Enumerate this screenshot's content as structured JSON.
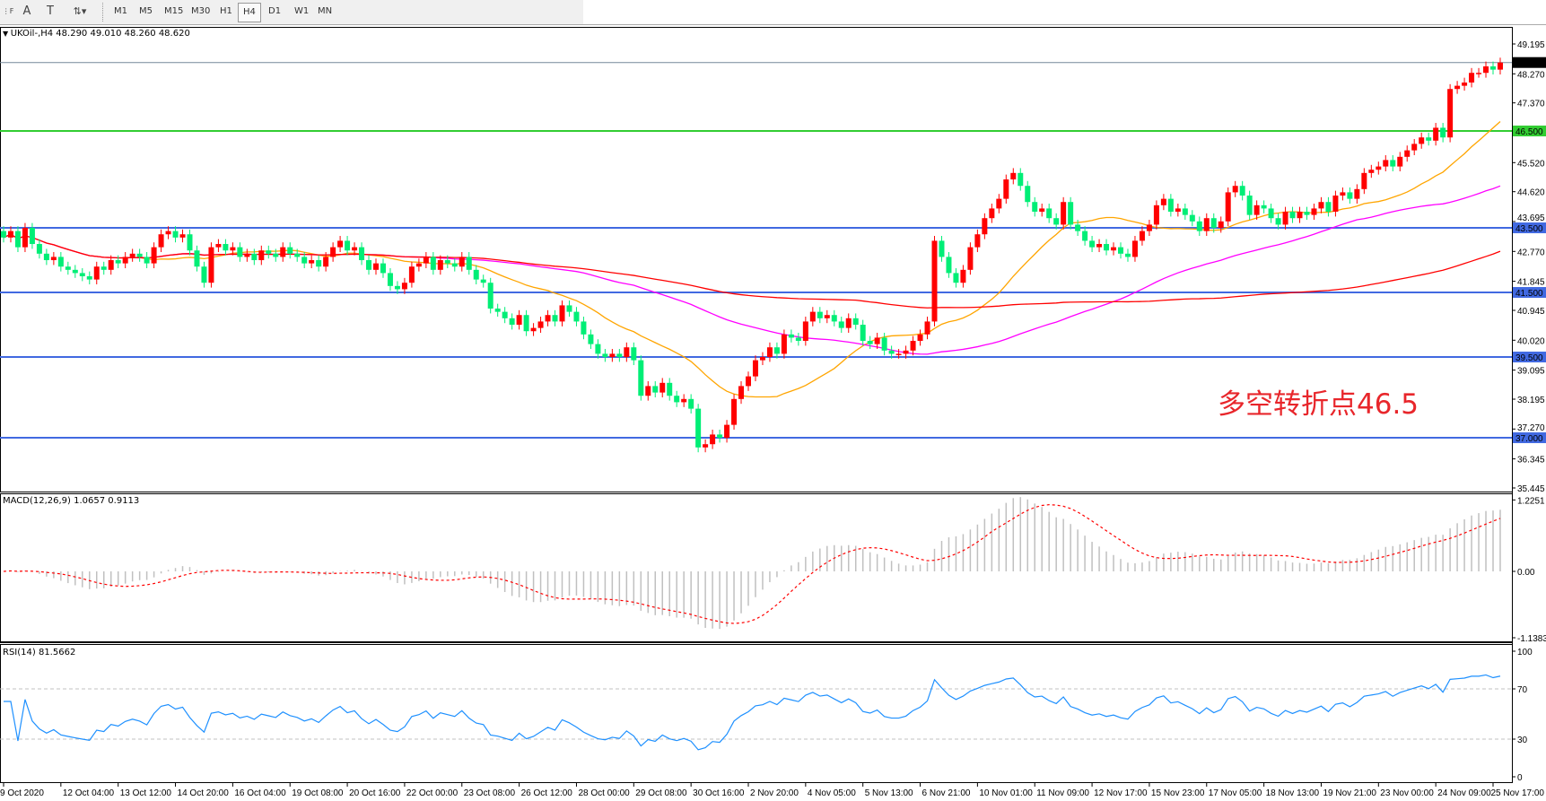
{
  "toolbar": {
    "icons": [
      "grid-f-icon",
      "text-a-icon",
      "text-box-icon",
      "arrows-icon"
    ],
    "timeframes": [
      "M1",
      "M5",
      "M15",
      "M30",
      "H1",
      "H4",
      "D1",
      "W1",
      "MN"
    ],
    "selected_timeframe": "H4"
  },
  "chart_title": "UKOil-,H4  48.290 49.010 48.260 48.620",
  "macd_label": "MACD(12,26,9) 1.0657 0.9113",
  "rsi_label": "RSI(14) 81.5662",
  "annotation": "多空转折点46.5",
  "colors": {
    "bull": "#ff0000",
    "bear": "#00ee76",
    "ma_fast": "#ffa500",
    "ma_mid": "#ff00ff",
    "ma_slow": "#ff0000",
    "support": "#4169e1",
    "pivot": "#32cd32",
    "macd_hist": "#c0c0c0",
    "macd_signal": "#ff0000",
    "rsi": "#1e90ff"
  },
  "chart_data": {
    "type": "candlestick",
    "symbol": "UKOil-",
    "timeframe": "H4",
    "current_price": "48.620",
    "price_ticks": [
      "49.195",
      "48.270",
      "47.370",
      "45.520",
      "44.620",
      "43.695",
      "42.770",
      "41.845",
      "40.945",
      "40.020",
      "39.095",
      "38.195",
      "37.270",
      "36.345",
      "35.445"
    ],
    "ylim": [
      35.445,
      49.195
    ],
    "horizontal_lines": [
      {
        "price": "46.500",
        "color": "#32cd32"
      },
      {
        "price": "43.500",
        "color": "#4169e1"
      },
      {
        "price": "41.500",
        "color": "#4169e1"
      },
      {
        "price": "39.500",
        "color": "#4169e1"
      },
      {
        "price": "37.000",
        "color": "#4169e1"
      }
    ],
    "closes": [
      43.2,
      43.4,
      42.9,
      43.5,
      43.0,
      42.7,
      42.5,
      42.6,
      42.3,
      42.2,
      42.1,
      42.0,
      41.9,
      42.3,
      42.2,
      42.5,
      42.4,
      42.6,
      42.7,
      42.6,
      42.4,
      42.9,
      43.3,
      43.4,
      43.2,
      43.3,
      42.8,
      42.3,
      41.8,
      42.9,
      43.0,
      42.8,
      42.9,
      42.6,
      42.7,
      42.5,
      42.8,
      42.7,
      42.6,
      42.9,
      42.7,
      42.6,
      42.4,
      42.5,
      42.3,
      42.6,
      42.9,
      43.1,
      42.8,
      42.9,
      42.5,
      42.2,
      42.4,
      42.1,
      41.7,
      41.6,
      41.8,
      42.3,
      42.4,
      42.6,
      42.2,
      42.5,
      42.4,
      42.3,
      42.6,
      42.2,
      41.9,
      41.8,
      41.0,
      40.9,
      40.7,
      40.5,
      40.8,
      40.3,
      40.4,
      40.6,
      40.8,
      40.6,
      41.1,
      40.9,
      40.6,
      40.2,
      39.9,
      39.6,
      39.5,
      39.6,
      39.5,
      39.8,
      39.4,
      38.3,
      38.6,
      38.4,
      38.7,
      38.3,
      38.1,
      38.2,
      37.9,
      36.7,
      36.8,
      37.1,
      37.0,
      37.4,
      38.2,
      38.6,
      38.9,
      39.4,
      39.5,
      39.8,
      39.6,
      40.2,
      40.1,
      40.0,
      40.6,
      40.9,
      40.7,
      40.8,
      40.6,
      40.4,
      40.7,
      40.5,
      40.0,
      39.9,
      40.1,
      39.7,
      39.6,
      39.6,
      39.7,
      40.0,
      40.2,
      40.6,
      43.1,
      42.6,
      42.1,
      41.8,
      42.2,
      42.9,
      43.3,
      43.8,
      44.1,
      44.4,
      45.0,
      45.2,
      44.8,
      44.3,
      44.0,
      44.1,
      43.8,
      43.6,
      44.3,
      43.6,
      43.4,
      43.1,
      42.9,
      43.0,
      42.8,
      42.9,
      42.7,
      42.6,
      43.1,
      43.4,
      43.6,
      44.2,
      44.4,
      44.0,
      44.1,
      43.9,
      43.7,
      43.4,
      43.8,
      43.5,
      43.7,
      44.6,
      44.8,
      44.5,
      43.9,
      44.2,
      44.1,
      43.8,
      43.6,
      44.0,
      43.8,
      44.0,
      43.9,
      44.1,
      44.3,
      44.0,
      44.5,
      44.6,
      44.4,
      44.7,
      45.2,
      45.3,
      45.4,
      45.6,
      45.4,
      45.7,
      45.9,
      46.1,
      46.3,
      46.2,
      46.6,
      46.3,
      47.8,
      47.9,
      48.0,
      48.3,
      48.3,
      48.5,
      48.4,
      48.62
    ],
    "macd": {
      "params": "12,26,9",
      "ticks": [
        "1.2251",
        "0.00",
        "-1.1383"
      ],
      "ylim": [
        -1.1383,
        1.2251
      ]
    },
    "rsi": {
      "period": 14,
      "ticks": [
        "100",
        "70",
        "30",
        "0"
      ],
      "levels": [
        70,
        30
      ]
    },
    "x_tick_labels": [
      "9 Oct 2020",
      "12 Oct 04:00",
      "13 Oct 12:00",
      "14 Oct 20:00",
      "16 Oct 04:00",
      "19 Oct 08:00",
      "20 Oct 16:00",
      "22 Oct 00:00",
      "23 Oct 08:00",
      "26 Oct 12:00",
      "28 Oct 00:00",
      "29 Oct 08:00",
      "30 Oct 16:00",
      "2 Nov 20:00",
      "4 Nov 05:00",
      "5 Nov 13:00",
      "6 Nov 21:00",
      "10 Nov 01:00",
      "11 Nov 09:00",
      "12 Nov 17:00",
      "15 Nov 23:00",
      "17 Nov 05:00",
      "18 Nov 13:00",
      "19 Nov 21:00",
      "23 Nov 00:00",
      "24 Nov 09:00",
      "25 Nov 17:00"
    ]
  }
}
